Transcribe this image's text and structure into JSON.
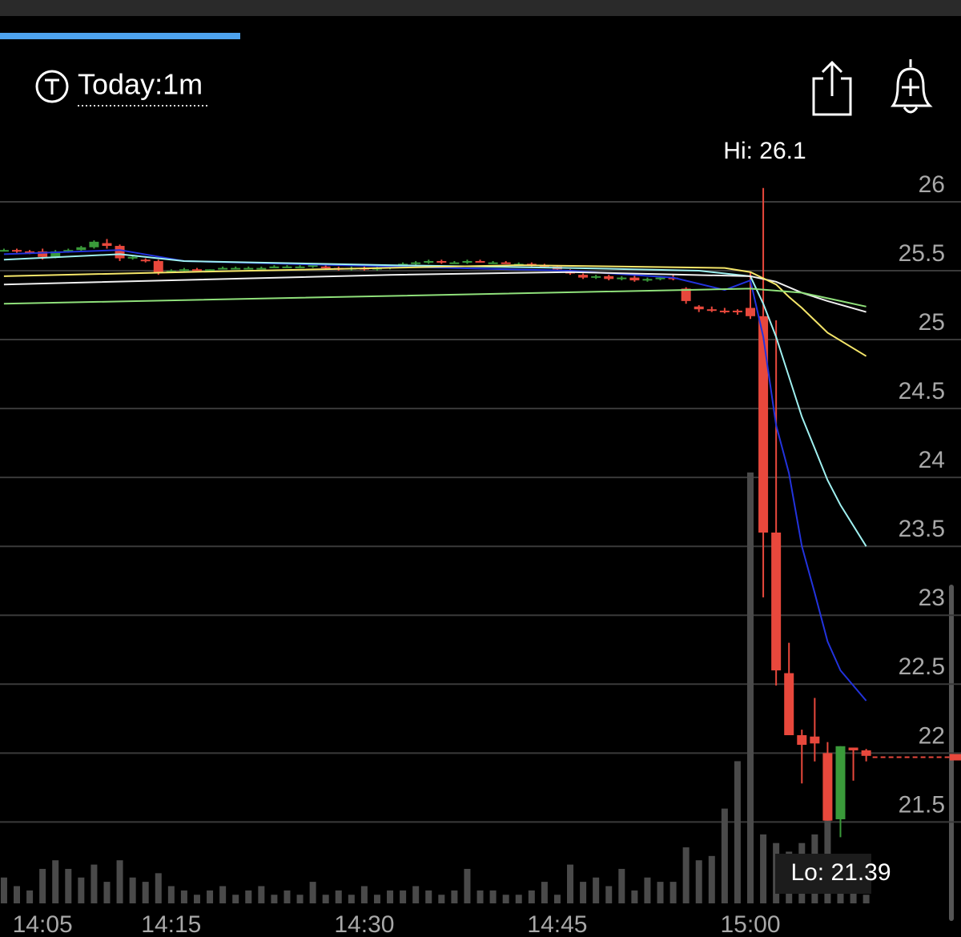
{
  "header": {
    "title": "Today:1m"
  },
  "chart_data": {
    "type": "candlestick",
    "categories": [
      null,
      null,
      null,
      "14:05",
      null,
      null,
      null,
      null,
      null,
      null,
      null,
      null,
      null,
      "14:15",
      null,
      null,
      null,
      null,
      null,
      null,
      null,
      null,
      null,
      null,
      null,
      null,
      null,
      null,
      "14:30",
      null,
      null,
      null,
      null,
      null,
      null,
      null,
      null,
      null,
      null,
      null,
      null,
      null,
      null,
      "14:45",
      null,
      null,
      null,
      null,
      null,
      null,
      null,
      null,
      null,
      null,
      null,
      null,
      null,
      null,
      "15:00",
      null,
      null,
      null,
      null,
      null,
      null,
      null,
      null,
      null
    ],
    "open": [
      25.65,
      25.65,
      25.64,
      25.64,
      25.6,
      25.64,
      25.65,
      25.67,
      25.7,
      25.68,
      25.59,
      25.58,
      25.57,
      25.5,
      25.5,
      25.51,
      25.5,
      25.52,
      25.52,
      25.52,
      25.52,
      25.53,
      25.53,
      25.53,
      25.53,
      25.53,
      25.52,
      25.51,
      25.52,
      25.51,
      25.52,
      25.53,
      25.55,
      25.56,
      25.57,
      25.56,
      25.56,
      25.57,
      25.56,
      25.56,
      25.55,
      25.55,
      25.54,
      25.53,
      25.5,
      25.47,
      25.45,
      25.46,
      25.44,
      25.45,
      25.43,
      25.44,
      25.45,
      25.37,
      25.24,
      25.22,
      25.21,
      25.21,
      25.23,
      25.17,
      23.6,
      22.58,
      22.13,
      22.12,
      22.0,
      21.52,
      22.04,
      22.02
    ],
    "high": [
      25.66,
      25.66,
      25.65,
      25.66,
      25.65,
      25.66,
      25.68,
      25.72,
      25.73,
      25.69,
      25.61,
      25.59,
      25.58,
      25.51,
      25.52,
      25.52,
      25.51,
      25.53,
      25.53,
      25.53,
      25.53,
      25.54,
      25.54,
      25.54,
      25.55,
      25.54,
      25.53,
      25.53,
      25.53,
      25.53,
      25.54,
      25.56,
      25.57,
      25.58,
      25.58,
      25.57,
      25.58,
      25.58,
      25.57,
      25.57,
      25.56,
      25.56,
      25.55,
      25.54,
      25.51,
      25.48,
      25.47,
      25.47,
      25.46,
      25.47,
      25.45,
      25.46,
      25.47,
      25.38,
      25.25,
      25.24,
      25.23,
      25.22,
      25.49,
      26.1,
      25.14,
      22.8,
      22.17,
      22.4,
      22.08,
      22.05,
      22.04,
      22.03
    ],
    "low": [
      25.64,
      25.63,
      25.62,
      25.58,
      25.59,
      25.63,
      25.64,
      25.66,
      25.66,
      25.57,
      25.58,
      25.56,
      25.47,
      25.49,
      25.49,
      25.5,
      25.49,
      25.51,
      25.51,
      25.51,
      25.51,
      25.52,
      25.52,
      25.52,
      25.52,
      25.51,
      25.5,
      25.5,
      25.5,
      25.5,
      25.51,
      25.52,
      25.54,
      25.55,
      25.55,
      25.55,
      25.55,
      25.56,
      25.55,
      25.55,
      25.54,
      25.53,
      25.52,
      25.5,
      25.47,
      25.44,
      25.44,
      25.43,
      25.43,
      25.42,
      25.42,
      25.43,
      25.43,
      25.26,
      25.2,
      25.2,
      25.19,
      25.18,
      25.15,
      23.13,
      22.49,
      22.13,
      21.78,
      21.94,
      21.51,
      21.39,
      21.8,
      21.94
    ],
    "close": [
      25.65,
      25.64,
      25.63,
      25.6,
      25.64,
      25.65,
      25.67,
      25.71,
      25.68,
      25.59,
      25.6,
      25.57,
      25.49,
      25.5,
      25.51,
      25.5,
      25.51,
      25.52,
      25.52,
      25.52,
      25.52,
      25.53,
      25.53,
      25.53,
      25.54,
      25.52,
      25.51,
      25.52,
      25.51,
      25.52,
      25.53,
      25.55,
      25.56,
      25.57,
      25.56,
      25.56,
      25.57,
      25.56,
      25.56,
      25.55,
      25.55,
      25.54,
      25.53,
      25.51,
      25.48,
      25.45,
      25.46,
      25.44,
      25.45,
      25.43,
      25.44,
      25.45,
      25.44,
      25.28,
      25.22,
      25.21,
      25.2,
      25.2,
      25.17,
      23.6,
      22.6,
      22.13,
      22.06,
      22.07,
      21.51,
      22.05,
      22.02,
      21.98
    ],
    "volume": [
      6,
      4,
      3,
      8,
      10,
      8,
      6,
      9,
      5,
      10,
      6,
      5,
      7,
      4,
      3,
      2,
      3,
      4,
      2,
      3,
      4,
      2,
      3,
      2,
      5,
      2,
      3,
      2,
      4,
      2,
      3,
      3,
      4,
      3,
      2,
      3,
      8,
      3,
      3,
      2,
      2,
      3,
      5,
      2,
      9,
      5,
      6,
      4,
      8,
      3,
      6,
      5,
      5,
      13,
      10,
      11,
      22,
      33,
      100,
      16,
      14,
      12,
      14,
      16,
      20,
      8,
      4,
      2
    ],
    "y2lim": [
      0,
      100
    ],
    "up_color": "#3a9a3a",
    "down_color": "#e8483c",
    "volume_color": "#4a4a4a",
    "lines": [
      {
        "color": "#2233dd",
        "x": [
          0,
          9,
          14,
          30,
          44,
          52,
          56,
          58,
          59,
          60,
          61,
          62,
          63,
          64,
          65,
          67
        ],
        "values": [
          25.62,
          25.65,
          25.57,
          25.53,
          25.5,
          25.45,
          25.36,
          25.43,
          25.02,
          24.38,
          24.03,
          23.5,
          23.16,
          22.81,
          22.6,
          22.38
        ]
      },
      {
        "color": "#9ff0f0",
        "x": [
          0,
          9,
          14,
          30,
          44,
          54,
          58,
          59,
          60,
          61,
          62,
          63,
          64,
          65,
          67
        ],
        "values": [
          25.58,
          25.62,
          25.57,
          25.54,
          25.52,
          25.5,
          25.46,
          25.26,
          25.02,
          24.73,
          24.44,
          24.21,
          23.98,
          23.8,
          23.5
        ]
      },
      {
        "color": "#f0f0f0",
        "x": [
          0,
          30,
          44,
          58,
          60,
          62,
          64,
          67
        ],
        "values": [
          25.4,
          25.47,
          25.49,
          25.46,
          25.42,
          25.34,
          25.28,
          25.2
        ]
      },
      {
        "color": "#f5e66a",
        "x": [
          0,
          14,
          40,
          56,
          58,
          60,
          61,
          62,
          63,
          64,
          67
        ],
        "values": [
          25.46,
          25.49,
          25.54,
          25.52,
          25.49,
          25.4,
          25.31,
          25.23,
          25.14,
          25.05,
          24.88
        ]
      },
      {
        "color": "#8fe07a",
        "x": [
          0,
          58,
          62,
          64,
          67
        ],
        "values": [
          25.26,
          25.37,
          25.34,
          25.3,
          25.24
        ]
      }
    ],
    "last_price": 21.97,
    "ylim": [
      20.84,
      26.36
    ],
    "yticks": [
      21.5,
      22,
      22.5,
      23,
      23.5,
      24,
      24.5,
      25,
      25.5,
      26
    ],
    "annotations": {
      "high": "Hi: 26.1",
      "low": "Lo: 21.39"
    }
  }
}
